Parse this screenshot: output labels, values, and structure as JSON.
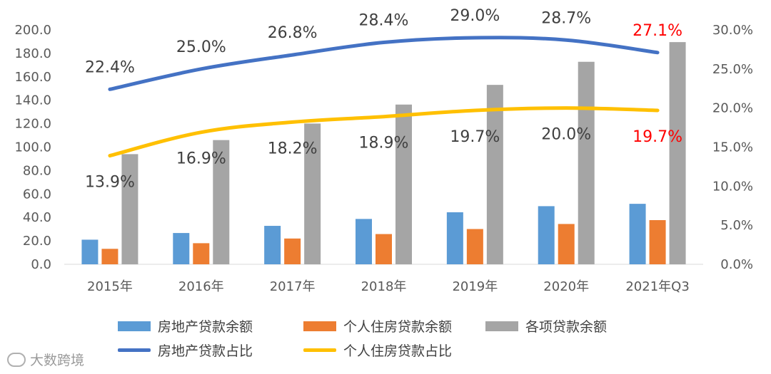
{
  "chart_data": {
    "type": "bar",
    "categories": [
      "2015年",
      "2016年",
      "2017年",
      "2018年",
      "2019年",
      "2020年",
      "2021年Q3"
    ],
    "series": [
      {
        "name": "房地产贷款余额",
        "kind": "bar",
        "axis": "left",
        "color": "#5B9BD5",
        "values": [
          21.0,
          26.7,
          32.8,
          38.7,
          44.4,
          49.6,
          51.6
        ]
      },
      {
        "name": "个人住房贷款余额",
        "kind": "bar",
        "axis": "left",
        "color": "#ED7D31",
        "values": [
          13.2,
          18.0,
          22.0,
          25.8,
          30.1,
          34.4,
          37.7
        ]
      },
      {
        "name": "各项贷款余额",
        "kind": "bar",
        "axis": "left",
        "color": "#A5A5A5",
        "values": [
          94.0,
          106.0,
          120.1,
          136.3,
          153.1,
          172.8,
          189.6
        ]
      },
      {
        "name": "房地产贷款占比",
        "kind": "line",
        "axis": "right",
        "color": "#4472C4",
        "values": [
          22.4,
          25.0,
          26.8,
          28.4,
          29.0,
          28.7,
          27.1
        ],
        "labels": [
          "22.4%",
          "25.0%",
          "26.8%",
          "28.4%",
          "29.0%",
          "28.7%",
          "27.1%"
        ]
      },
      {
        "name": "个人住房贷款占比",
        "kind": "line",
        "axis": "right",
        "color": "#FFC000",
        "values": [
          13.9,
          16.9,
          18.2,
          18.9,
          19.7,
          20.0,
          19.7
        ],
        "labels": [
          "13.9%",
          "16.9%",
          "18.2%",
          "18.9%",
          "19.7%",
          "20.0%",
          "19.7%"
        ]
      }
    ],
    "y_left": {
      "min": 0,
      "max": 200,
      "ticks": [
        "0.0",
        "20.0",
        "40.0",
        "60.0",
        "80.0",
        "100.0",
        "120.0",
        "140.0",
        "160.0",
        "180.0",
        "200.0"
      ]
    },
    "y_right": {
      "min": 0,
      "max": 30,
      "ticks": [
        "0.0%",
        "5.0%",
        "10.0%",
        "15.0%",
        "20.0%",
        "25.0%",
        "30.0%"
      ]
    },
    "grid": false,
    "legend": "bottom",
    "highlight_color": "#FF0000",
    "highlight_last_label": true
  },
  "legend": {
    "bar1": "房地产贷款余额",
    "bar2": "个人住房贷款余额",
    "bar3": "各项贷款余额",
    "line1": "房地产贷款占比",
    "line2": "个人住房贷款占比"
  },
  "watermark": "大数跨境"
}
